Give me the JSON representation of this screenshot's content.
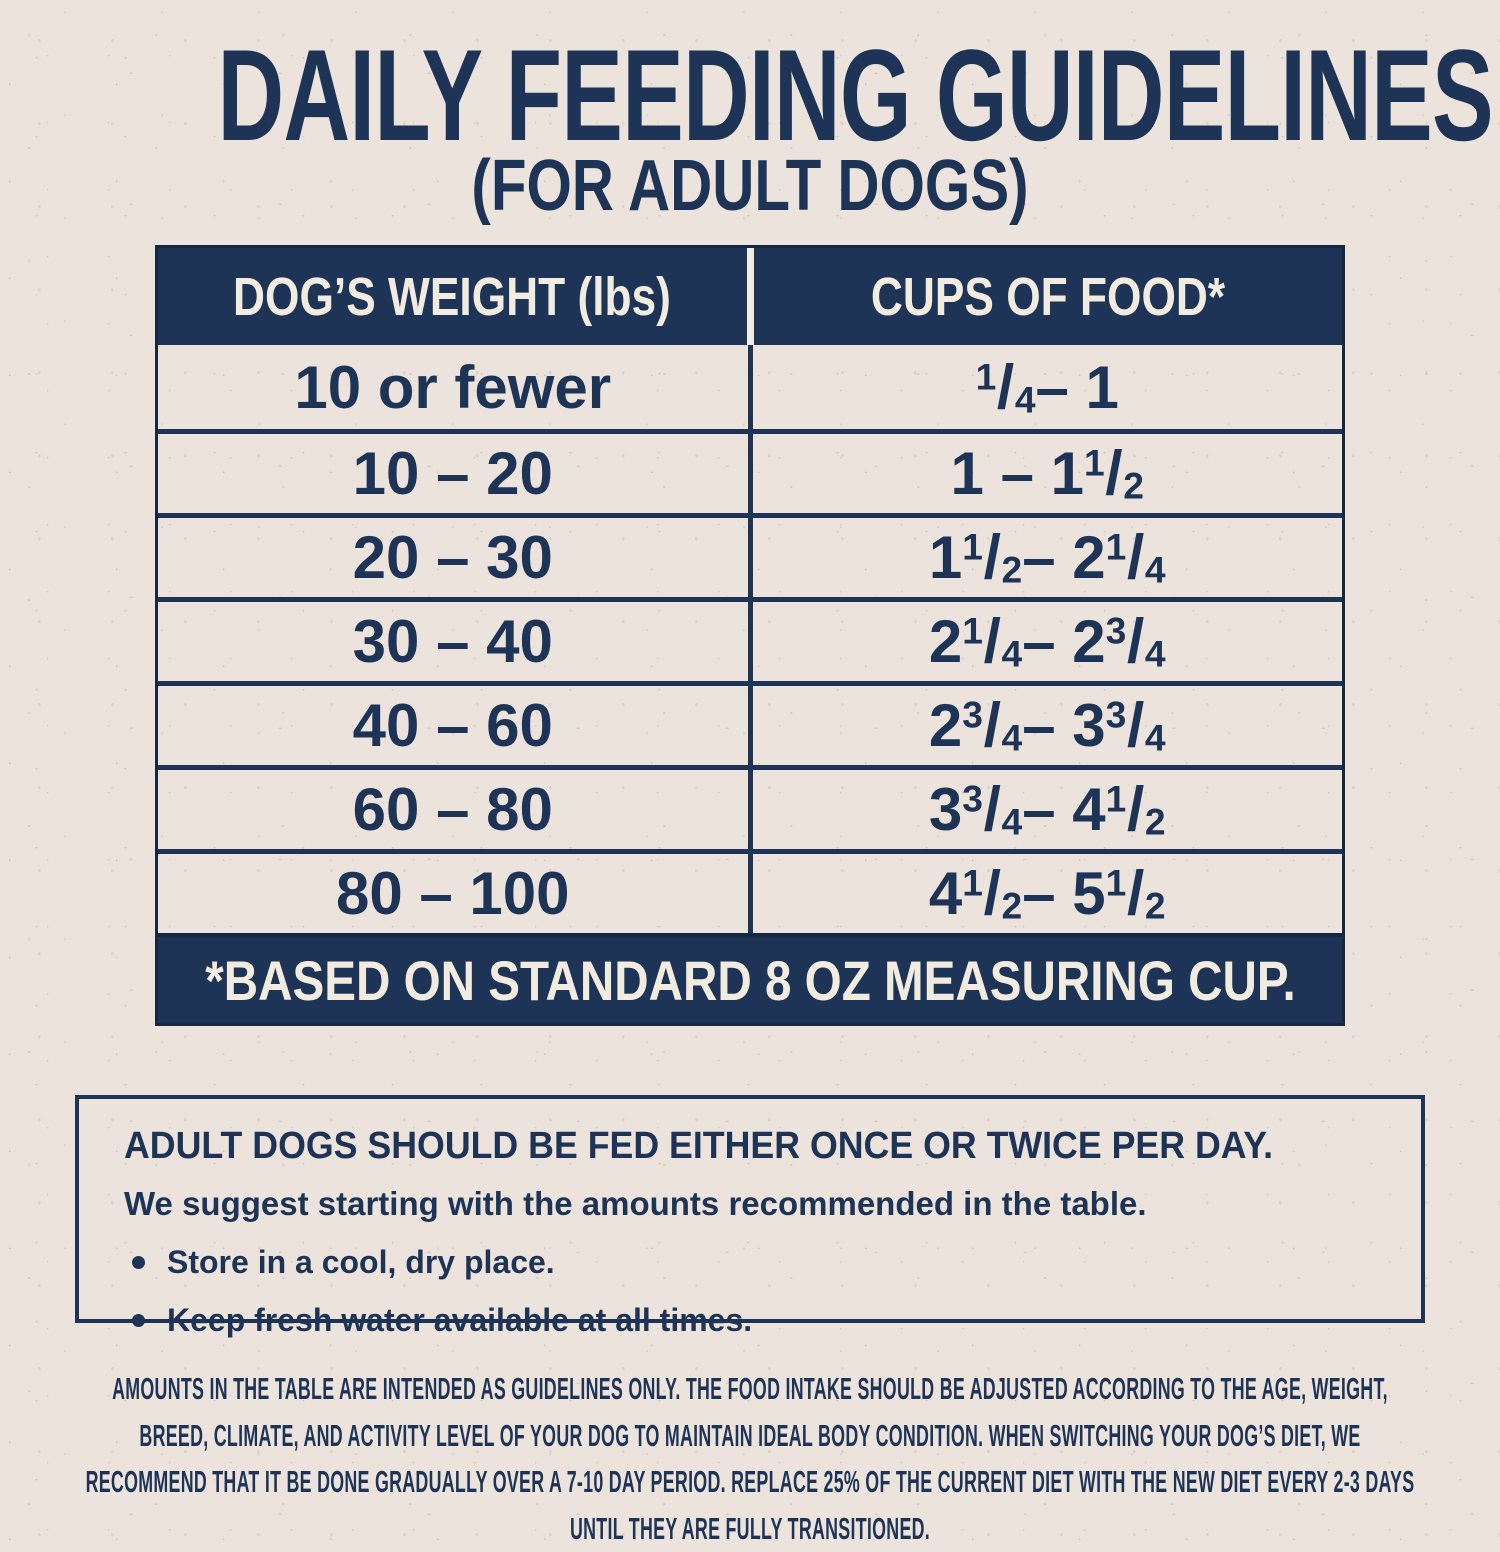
{
  "title": "DAILY FEEDING GUIDELINES",
  "subtitle": "(FOR ADULT DOGS)",
  "table": {
    "headers": [
      "DOG’S WEIGHT (lbs)",
      "CUPS OF FOOD*"
    ],
    "rows": [
      {
        "weight": "10 or fewer",
        "cups": "1/4 – 1"
      },
      {
        "weight": "10 – 20",
        "cups": "1 – 1 1/2"
      },
      {
        "weight": "20 – 30",
        "cups": "1 1/2 – 2 1/4"
      },
      {
        "weight": "30 – 40",
        "cups": "2 1/4 – 2 3/4"
      },
      {
        "weight": "40 – 60",
        "cups": "2 3/4 – 3 3/4"
      },
      {
        "weight": "60 – 80",
        "cups": "3 3/4 – 4 1/2"
      },
      {
        "weight": "80 – 100",
        "cups": "4 1/2 – 5 1/2"
      }
    ],
    "footnote": "*BASED ON STANDARD 8 OZ MEASURING CUP."
  },
  "info_box": {
    "heading": "ADULT DOGS SHOULD BE FED EITHER ONCE OR TWICE PER DAY.",
    "subheading": "We suggest starting with the amounts recommended in the table.",
    "bullets": [
      "Store in a cool, dry place.",
      "Keep fresh water available at all times."
    ]
  },
  "disclaimer": "AMOUNTS IN THE TABLE ARE INTENDED AS GUIDELINES ONLY. THE FOOD INTAKE SHOULD BE ADJUSTED ACCORDING TO THE AGE, WEIGHT, BREED, CLIMATE, AND ACTIVITY LEVEL OF YOUR DOG TO MAINTAIN IDEAL BODY CONDITION. WHEN SWITCHING YOUR DOG’S DIET, WE RECOMMEND THAT IT BE DONE GRADUALLY OVER A 7-10 DAY PERIOD. REPLACE 25% OF THE CURRENT DIET WITH THE NEW DIET EVERY 2-3 DAYS UNTIL THEY ARE FULLY TRANSITIONED.",
  "colors": {
    "navy": "#1d3456",
    "navy_dark": "#152841",
    "cream_text": "#f2ebdf",
    "background": "#ece3dd"
  }
}
